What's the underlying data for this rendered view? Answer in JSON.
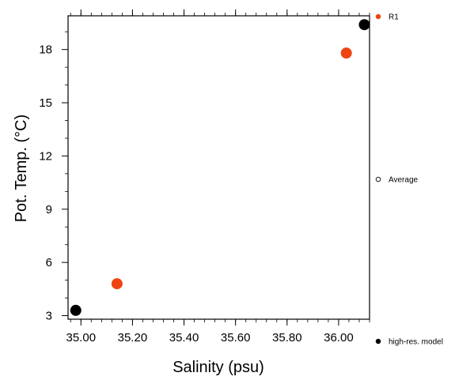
{
  "chart_data": {
    "type": "scatter",
    "xlabel": "Salinity (psu)",
    "ylabel": "Pot. Temp. (°C)",
    "xlim": [
      34.95,
      36.12
    ],
    "ylim": [
      2.8,
      19.9
    ],
    "x_ticks": [
      "35.00",
      "35.20",
      "35.40",
      "35.60",
      "35.80",
      "36.00"
    ],
    "x_tick_values": [
      35.0,
      35.2,
      35.4,
      35.6,
      35.8,
      36.0
    ],
    "y_ticks": [
      "3",
      "6",
      "9",
      "12",
      "15",
      "18"
    ],
    "y_tick_values": [
      3,
      6,
      9,
      12,
      15,
      18
    ],
    "grid": false,
    "legend_placement": "right",
    "series": [
      {
        "name": "R1",
        "color": "#ee4411",
        "marker": "filled-circle",
        "points": [
          {
            "x": 35.14,
            "y": 4.8
          },
          {
            "x": 36.03,
            "y": 17.8
          }
        ]
      },
      {
        "name": "Average",
        "color": "#000000",
        "marker": "open-circle",
        "points": []
      },
      {
        "name": "high-res. model",
        "color": "#000000",
        "marker": "filled-circle",
        "points": [
          {
            "x": 34.98,
            "y": 3.3
          },
          {
            "x": 36.1,
            "y": 19.4
          }
        ]
      }
    ]
  }
}
